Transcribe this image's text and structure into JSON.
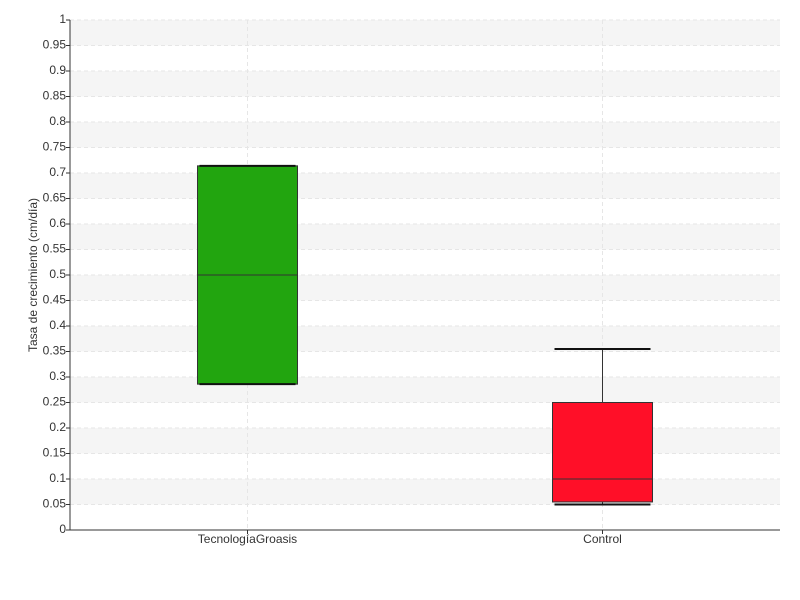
{
  "chart_data": {
    "type": "box",
    "ylabel": "Tasa de crecimiento (cm/día)",
    "categories": [
      "TecnologíaGroasis",
      "Control"
    ],
    "boxes": [
      {
        "color": "#22a50f",
        "min": 0.286,
        "q1": 0.286,
        "median": 0.5,
        "q3": 0.714,
        "max": 0.714
      },
      {
        "color": "#ff0f28",
        "min": 0.05,
        "q1": 0.055,
        "median": 0.1,
        "q3": 0.25,
        "max": 0.355
      }
    ],
    "ylim": [
      0,
      1
    ],
    "yticks": [
      0,
      0.05,
      0.1,
      0.15,
      0.2,
      0.25,
      0.3,
      0.35,
      0.4,
      0.45,
      0.5,
      0.55,
      0.6,
      0.65,
      0.7,
      0.75,
      0.8,
      0.85,
      0.9,
      0.95,
      1
    ],
    "grid": true
  }
}
